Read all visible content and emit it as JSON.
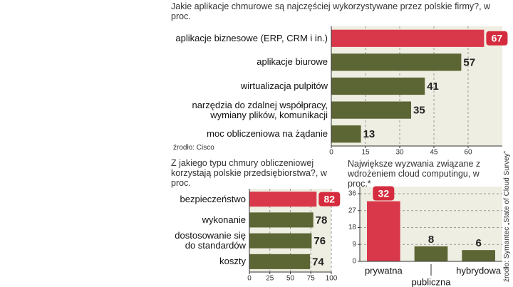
{
  "chart_data": [
    {
      "type": "bar",
      "orientation": "horizontal",
      "title": "Jakie aplikacje chmurowe są najczęściej wykorzystywane przez polskie firmy?, w proc.",
      "categories": [
        "aplikacje biznesowe (ERP, CRM i in.)",
        "aplikacje biurowe",
        "wirtualizacja pulpitów",
        "narzędzia do zdalnej współpracy, wymiany plików, komunikacji",
        "moc obliczeniowa na żądanie"
      ],
      "values": [
        67,
        57,
        41,
        35,
        13
      ],
      "colors": [
        "#d9384a",
        "#5c6534",
        "#5c6534",
        "#5c6534",
        "#5c6534"
      ],
      "xlim": [
        0,
        75
      ],
      "xticks": [
        0,
        15,
        30,
        45,
        60
      ],
      "grid": true,
      "source": "źrodło: Cisco"
    },
    {
      "type": "bar",
      "orientation": "horizontal",
      "title": "Z jakiego typu chmury obliczeniowej korzystają polskie przedsiębiorstwa?, w proc.",
      "categories": [
        "bezpieczeństwo",
        "wykonanie",
        "dostosowanie się do standardów",
        "koszty"
      ],
      "values": [
        82,
        78,
        76,
        74
      ],
      "colors": [
        "#d9384a",
        "#5c6534",
        "#5c6534",
        "#5c6534"
      ],
      "xlim": [
        0,
        100
      ],
      "xticks": [
        0,
        25,
        50,
        75,
        100
      ],
      "grid": true
    },
    {
      "type": "bar",
      "orientation": "vertical",
      "title": "Największe wyzwania związane z wdrożeniem cloud computingu, w proc.*",
      "categories": [
        "prywatna",
        "publiczna",
        "hybrydowa"
      ],
      "values": [
        32,
        8,
        6
      ],
      "colors": [
        "#d9384a",
        "#5c6534",
        "#5c6534"
      ],
      "ylim": [
        0,
        36
      ],
      "yticks": [
        0,
        9,
        18,
        27,
        36
      ],
      "grid": true,
      "source": "źrodło: Symantec „State of Cloud Survey”"
    }
  ]
}
